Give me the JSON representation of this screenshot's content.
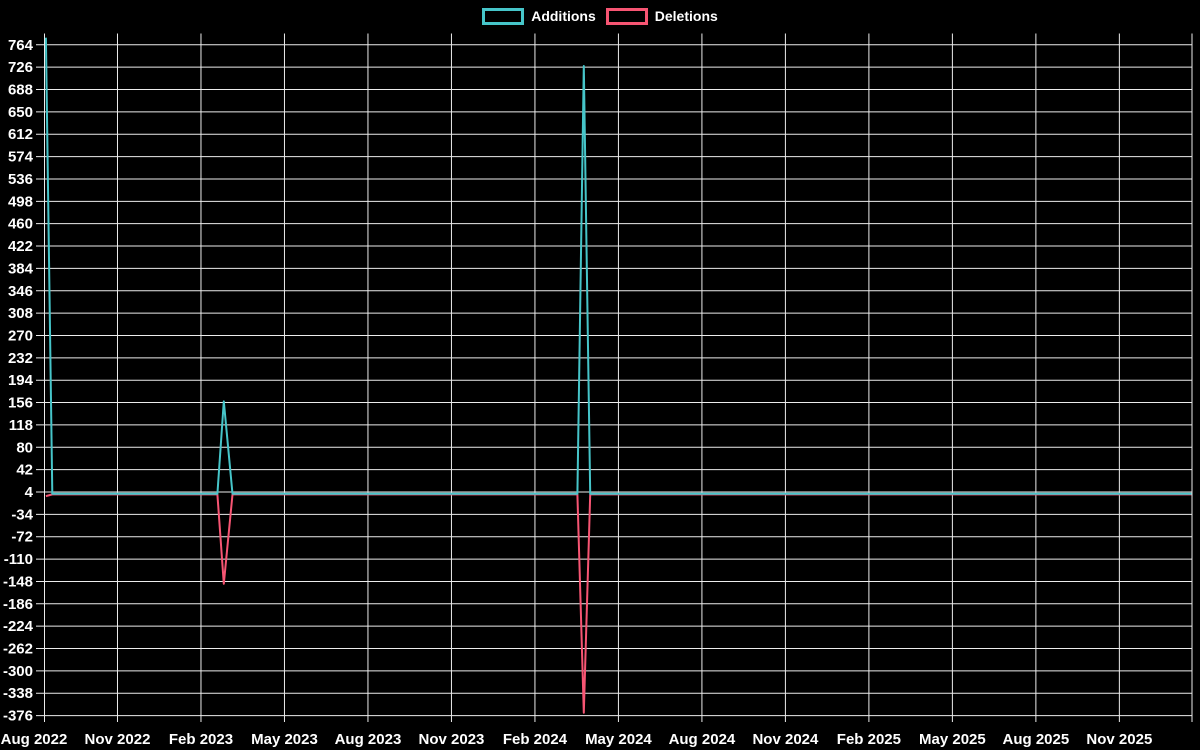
{
  "chart_data": {
    "type": "line",
    "title": "",
    "xlabel": "",
    "ylabel": "",
    "grid": true,
    "background_color": "#000000",
    "gridline_color": "#ececec",
    "text_color": "#ffffff",
    "legend_position": "top-center",
    "x_axis": {
      "tick_labels": [
        "Aug 2022",
        "Nov 2022",
        "Feb 2023",
        "May 2023",
        "Aug 2023",
        "Nov 2023",
        "Feb 2024",
        "May 2024",
        "Aug 2024",
        "Nov 2024",
        "Feb 2025",
        "May 2025",
        "Aug 2025",
        "Nov 2025"
      ],
      "months_per_tick": 3,
      "start": "2022-08"
    },
    "y_axis": {
      "min": -376,
      "max": 764,
      "step": 38,
      "tick_labels": [
        764,
        726,
        688,
        650,
        612,
        574,
        536,
        498,
        460,
        422,
        384,
        346,
        308,
        270,
        232,
        194,
        156,
        118,
        80,
        42,
        4,
        -34,
        -72,
        -110,
        -148,
        -186,
        -224,
        -262,
        -300,
        -338,
        -376
      ]
    },
    "series": [
      {
        "name": "Additions",
        "color": "#46c5c9",
        "points": [
          [
            "2022-08-14",
            776
          ],
          [
            "2022-08-21",
            1
          ],
          [
            "2023-02-19",
            1
          ],
          [
            "2023-02-26",
            158
          ],
          [
            "2023-03-05",
            1
          ],
          [
            "2024-03-17",
            1
          ],
          [
            "2024-03-24",
            728
          ],
          [
            "2024-03-31",
            1
          ],
          [
            "2026-01-19",
            1
          ]
        ]
      },
      {
        "name": "Deletions",
        "color": "#f75573",
        "points": [
          [
            "2022-08-14",
            -3
          ],
          [
            "2022-08-21",
            0
          ],
          [
            "2023-02-19",
            0
          ],
          [
            "2023-02-26",
            -152
          ],
          [
            "2023-03-05",
            0
          ],
          [
            "2024-03-17",
            0
          ],
          [
            "2024-03-24",
            -371
          ],
          [
            "2024-03-31",
            0
          ],
          [
            "2026-01-19",
            0
          ]
        ]
      }
    ]
  }
}
